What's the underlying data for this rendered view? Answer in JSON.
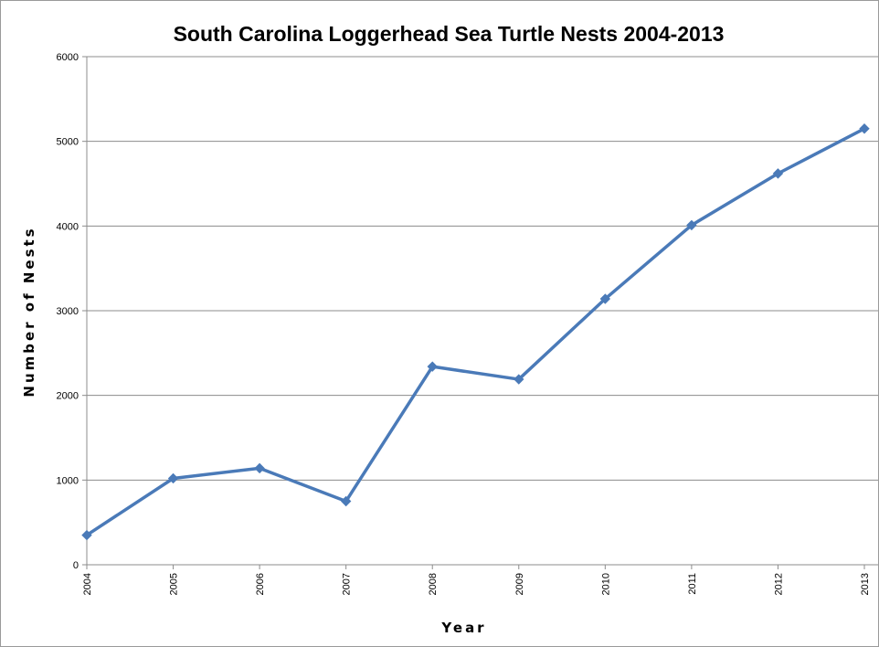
{
  "chart_data": {
    "type": "line",
    "title": "South Carolina Loggerhead Sea Turtle Nests 2004-2013",
    "xlabel": "Year",
    "ylabel": "Number of Nests",
    "categories": [
      "2004",
      "2005",
      "2006",
      "2007",
      "2008",
      "2009",
      "2010",
      "2011",
      "2012",
      "2013"
    ],
    "series": [
      {
        "name": "",
        "values": [
          350,
          1020,
          1140,
          750,
          2340,
          2190,
          3140,
          4010,
          4620,
          5150
        ],
        "color": "#4a7ab8"
      }
    ],
    "ylim": [
      0,
      6000
    ],
    "yticks": [
      0,
      1000,
      2000,
      3000,
      4000,
      5000,
      6000
    ],
    "grid": "horizontal",
    "legend": "none"
  }
}
